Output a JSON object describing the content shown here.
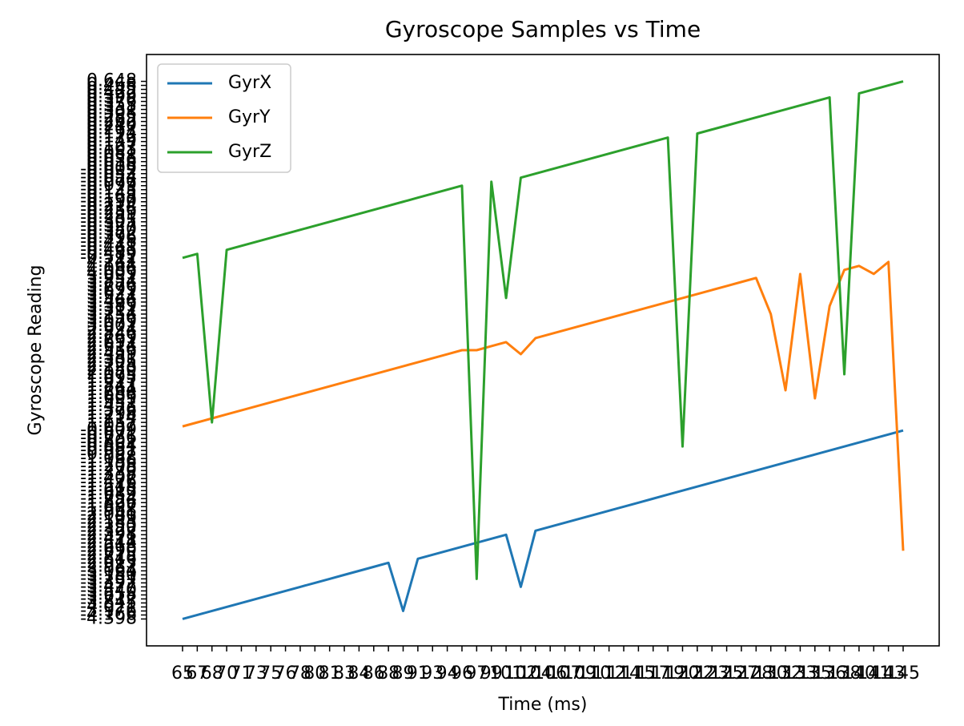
{
  "chart_data": {
    "type": "line",
    "title": "Gyroscope Samples vs Time",
    "x_label": "Time (ms)",
    "y_label": "Gyroscope Reading",
    "categories": [
      "65",
      "67",
      "68",
      "70",
      "71",
      "73",
      "75",
      "76",
      "78",
      "80",
      "81",
      "83",
      "84",
      "86",
      "88",
      "89",
      "91",
      "93",
      "94",
      "96",
      "97",
      "99",
      "101",
      "102",
      "104",
      "106",
      "107",
      "109",
      "110",
      "112",
      "114",
      "115",
      "117",
      "119",
      "120",
      "122",
      "123",
      "125",
      "127",
      "128",
      "130",
      "132",
      "133",
      "135",
      "136",
      "138",
      "140",
      "141",
      "143",
      "145"
    ],
    "series": [
      {
        "name": "GyrX",
        "color": "#1f77b4",
        "values": [
          0,
          1,
          2,
          3,
          4,
          5,
          6,
          7,
          8,
          9,
          10,
          11,
          12,
          13,
          14,
          2,
          15,
          16,
          17,
          18,
          19,
          20,
          21,
          8,
          22,
          23,
          24,
          25,
          26,
          27,
          28,
          29,
          30,
          31,
          32,
          33,
          34,
          35,
          36,
          37,
          38,
          39,
          40,
          41,
          42,
          43,
          44,
          45,
          46,
          47
        ]
      },
      {
        "name": "GyrY",
        "color": "#ff7f0e",
        "values": [
          48,
          49,
          50,
          51,
          52,
          53,
          54,
          55,
          56,
          57,
          58,
          59,
          60,
          61,
          62,
          63,
          64,
          65,
          66,
          67,
          67,
          68,
          69,
          66,
          70,
          71,
          72,
          73,
          74,
          75,
          76,
          77,
          78,
          79,
          80,
          81,
          82,
          83,
          84,
          85,
          76,
          57,
          86,
          55,
          78,
          87,
          88,
          86,
          89,
          17
        ]
      },
      {
        "name": "GyrZ",
        "color": "#2ca02c",
        "values": [
          90,
          91,
          49,
          92,
          93,
          94,
          95,
          96,
          97,
          98,
          99,
          100,
          101,
          102,
          103,
          104,
          105,
          106,
          107,
          108,
          10,
          109,
          80,
          110,
          111,
          112,
          113,
          114,
          115,
          116,
          117,
          118,
          119,
          120,
          43,
          121,
          122,
          123,
          124,
          125,
          126,
          127,
          128,
          129,
          130,
          61,
          131,
          132,
          133,
          134
        ]
      }
    ],
    "yticks": [
      {
        "value": 0,
        "label": "-4.398"
      },
      {
        "value": 1,
        "label": "-4.166"
      },
      {
        "value": 2,
        "label": "-3.976"
      },
      {
        "value": 3,
        "label": "-4.021"
      },
      {
        "value": 4,
        "label": "-3.845"
      },
      {
        "value": 5,
        "label": "-3.712"
      },
      {
        "value": 6,
        "label": "-3.658"
      },
      {
        "value": 7,
        "label": "-3.540"
      },
      {
        "value": 8,
        "label": "-3.477"
      },
      {
        "value": 9,
        "label": "-3.392"
      },
      {
        "value": 10,
        "label": "-3.251"
      },
      {
        "value": 11,
        "label": "-3.180"
      },
      {
        "value": 12,
        "label": "-3.064"
      },
      {
        "value": 13,
        "label": "-2.987"
      },
      {
        "value": 14,
        "label": "-2.913"
      },
      {
        "value": 15,
        "label": "-2.846"
      },
      {
        "value": 16,
        "label": "-2.775"
      },
      {
        "value": 17,
        "label": "-2.690"
      },
      {
        "value": 18,
        "label": "-2.618"
      },
      {
        "value": 19,
        "label": "-2.544"
      },
      {
        "value": 20,
        "label": "-2.471"
      },
      {
        "value": 21,
        "label": "-2.398"
      },
      {
        "value": 22,
        "label": "-2.322"
      },
      {
        "value": 23,
        "label": "-2.250"
      },
      {
        "value": 24,
        "label": "-2.183"
      },
      {
        "value": 25,
        "label": "-2.109"
      },
      {
        "value": 26,
        "label": "-2.041"
      },
      {
        "value": 27,
        "label": "-1.968"
      },
      {
        "value": 28,
        "label": "-1.897"
      },
      {
        "value": 29,
        "label": "-1.826"
      },
      {
        "value": 30,
        "label": "-1.754"
      },
      {
        "value": 31,
        "label": "-1.689"
      },
      {
        "value": 32,
        "label": "-1.615"
      },
      {
        "value": 33,
        "label": "-1.548"
      },
      {
        "value": 34,
        "label": "-1.476"
      },
      {
        "value": 35,
        "label": "-1.407"
      },
      {
        "value": 36,
        "label": "-1.338"
      },
      {
        "value": 37,
        "label": "-1.270"
      },
      {
        "value": 38,
        "label": "-1.203"
      },
      {
        "value": 39,
        "label": "-1.136"
      },
      {
        "value": 40,
        "label": "-1.068"
      },
      {
        "value": 41,
        "label": "-0.997"
      },
      {
        "value": 42,
        "label": "-0.931"
      },
      {
        "value": 43,
        "label": "-0.864"
      },
      {
        "value": 44,
        "label": "-0.802"
      },
      {
        "value": 45,
        "label": "-0.736"
      },
      {
        "value": 46,
        "label": "-0.671"
      },
      {
        "value": 47,
        "label": "-0.609"
      },
      {
        "value": 48,
        "label": "1.052"
      },
      {
        "value": 49,
        "label": "1.137"
      },
      {
        "value": 50,
        "label": "1.214"
      },
      {
        "value": 51,
        "label": "1.298"
      },
      {
        "value": 52,
        "label": "1.376"
      },
      {
        "value": 53,
        "label": "1.453"
      },
      {
        "value": 54,
        "label": "1.531"
      },
      {
        "value": 55,
        "label": "1.609"
      },
      {
        "value": 56,
        "label": "1.688"
      },
      {
        "value": 57,
        "label": "1.764"
      },
      {
        "value": 58,
        "label": "1.841"
      },
      {
        "value": 59,
        "label": "1.917"
      },
      {
        "value": 60,
        "label": "1.995"
      },
      {
        "value": 61,
        "label": "2.073"
      },
      {
        "value": 62,
        "label": "2.150"
      },
      {
        "value": 63,
        "label": "2.228"
      },
      {
        "value": 64,
        "label": "2.305"
      },
      {
        "value": 65,
        "label": "2.381"
      },
      {
        "value": 66,
        "label": "2.459"
      },
      {
        "value": 67,
        "label": "2.536"
      },
      {
        "value": 68,
        "label": "2.614"
      },
      {
        "value": 69,
        "label": "2.691"
      },
      {
        "value": 70,
        "label": "2.769"
      },
      {
        "value": 71,
        "label": "2.846"
      },
      {
        "value": 72,
        "label": "2.924"
      },
      {
        "value": 73,
        "label": "3.001"
      },
      {
        "value": 74,
        "label": "3.079"
      },
      {
        "value": 75,
        "label": "3.156"
      },
      {
        "value": 76,
        "label": "3.234"
      },
      {
        "value": 77,
        "label": "3.311"
      },
      {
        "value": 78,
        "label": "3.389"
      },
      {
        "value": 79,
        "label": "3.466"
      },
      {
        "value": 80,
        "label": "3.544"
      },
      {
        "value": 81,
        "label": "3.621"
      },
      {
        "value": 82,
        "label": "3.699"
      },
      {
        "value": 83,
        "label": "3.776"
      },
      {
        "value": 84,
        "label": "3.854"
      },
      {
        "value": 85,
        "label": "3.931"
      },
      {
        "value": 86,
        "label": "4.009"
      },
      {
        "value": 87,
        "label": "4.086"
      },
      {
        "value": 88,
        "label": "4.164"
      },
      {
        "value": 89,
        "label": "4.241"
      },
      {
        "value": 90,
        "label": "-0.512"
      },
      {
        "value": 91,
        "label": "-0.489"
      },
      {
        "value": 92,
        "label": "-0.463"
      },
      {
        "value": 93,
        "label": "-0.441"
      },
      {
        "value": 94,
        "label": "-0.418"
      },
      {
        "value": 95,
        "label": "-0.396"
      },
      {
        "value": 96,
        "label": "-0.372"
      },
      {
        "value": 97,
        "label": "-0.350"
      },
      {
        "value": 98,
        "label": "-0.327"
      },
      {
        "value": 99,
        "label": "-0.305"
      },
      {
        "value": 100,
        "label": "-0.281"
      },
      {
        "value": 101,
        "label": "-0.259"
      },
      {
        "value": 102,
        "label": "-0.236"
      },
      {
        "value": 103,
        "label": "-0.214"
      },
      {
        "value": 104,
        "label": "-0.190"
      },
      {
        "value": 105,
        "label": "-0.168"
      },
      {
        "value": 106,
        "label": "-0.145"
      },
      {
        "value": 107,
        "label": "-0.123"
      },
      {
        "value": 108,
        "label": "-0.099"
      },
      {
        "value": 109,
        "label": "-0.077"
      },
      {
        "value": 110,
        "label": "-0.054"
      },
      {
        "value": 111,
        "label": "-0.032"
      },
      {
        "value": 112,
        "label": "-0.009"
      },
      {
        "value": 113,
        "label": "0.013"
      },
      {
        "value": 114,
        "label": "0.036"
      },
      {
        "value": 115,
        "label": "0.058"
      },
      {
        "value": 116,
        "label": "0.081"
      },
      {
        "value": 117,
        "label": "0.103"
      },
      {
        "value": 118,
        "label": "0.127"
      },
      {
        "value": 119,
        "label": "0.149"
      },
      {
        "value": 120,
        "label": "0.172"
      },
      {
        "value": 121,
        "label": "0.194"
      },
      {
        "value": 122,
        "label": "0.217"
      },
      {
        "value": 123,
        "label": "0.240"
      },
      {
        "value": 124,
        "label": "0.262"
      },
      {
        "value": 125,
        "label": "0.285"
      },
      {
        "value": 126,
        "label": "0.308"
      },
      {
        "value": 127,
        "label": "0.331"
      },
      {
        "value": 128,
        "label": "0.353"
      },
      {
        "value": 129,
        "label": "0.376"
      },
      {
        "value": 130,
        "label": "0.399"
      },
      {
        "value": 131,
        "label": "0.422"
      },
      {
        "value": 132,
        "label": "0.445"
      },
      {
        "value": 133,
        "label": "0.468"
      },
      {
        "value": 134,
        "label": "0.648"
      }
    ],
    "legend": "upper left"
  }
}
